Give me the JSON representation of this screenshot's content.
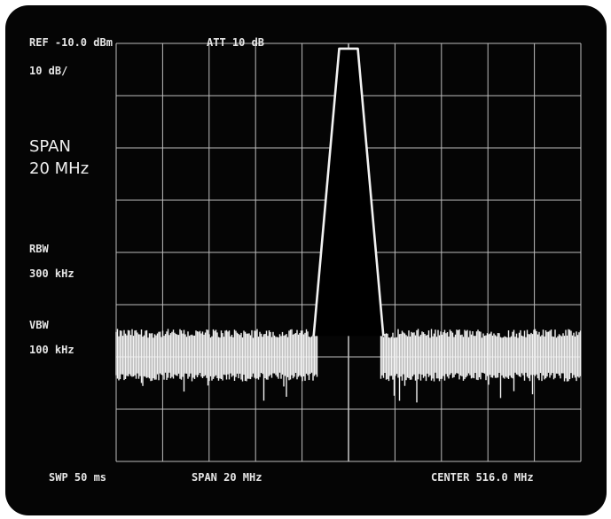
{
  "header": {
    "ref_level": "REF -10.0 dBm",
    "attenuation": "ATT 10 dB",
    "scale": "10 dB/"
  },
  "side": {
    "span_label": "SPAN",
    "span_value": "20 MHz",
    "rbw_label": "RBW",
    "rbw_value": "300 kHz",
    "vbw_label": "VBW",
    "vbw_value": "100 kHz"
  },
  "footer": {
    "sweep": "SWP 50 ms",
    "span": "SPAN 20 MHz",
    "center": "CENTER 516.0 MHz"
  },
  "colors": {
    "screen": "#050505",
    "trace": "#f2f2f2",
    "grid": "#bdbdbd"
  },
  "chart_data": {
    "type": "line",
    "divisions": {
      "horizontal": 10,
      "vertical": 8
    },
    "x_offset_mhz": [
      -10,
      10
    ],
    "y_ref_dbm": -10,
    "y_range_dbm": [
      -90,
      -10
    ],
    "noise_floor_band_dbm": [
      -66,
      -73
    ],
    "noise_spike_min_dbm": -78,
    "signal": {
      "peak_dbm": -11,
      "trace_points_mhz_dbm": [
        [
          -1.5,
          -66
        ],
        [
          -0.4,
          -11
        ],
        [
          0.0,
          -11
        ],
        [
          0.4,
          -11
        ],
        [
          1.5,
          -66
        ]
      ]
    }
  }
}
